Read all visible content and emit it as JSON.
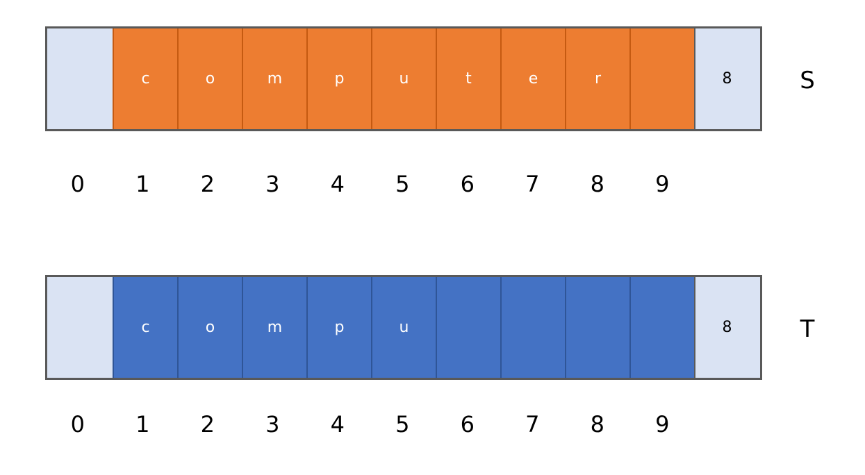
{
  "colors": {
    "s_fill": "#ed7d31",
    "t_fill": "#4472c4",
    "pale": "#dae3f3",
    "border": "#595959"
  },
  "S": {
    "label": "S",
    "cells": [
      "",
      "c",
      "o",
      "m",
      "p",
      "u",
      "t",
      "e",
      "r",
      "",
      "8"
    ]
  },
  "T": {
    "label": "T",
    "cells": [
      "",
      "c",
      "o",
      "m",
      "p",
      "u",
      "",
      "",
      "",
      "",
      "8"
    ]
  },
  "indices": [
    "0",
    "1",
    "2",
    "3",
    "4",
    "5",
    "6",
    "7",
    "8",
    "9"
  ]
}
